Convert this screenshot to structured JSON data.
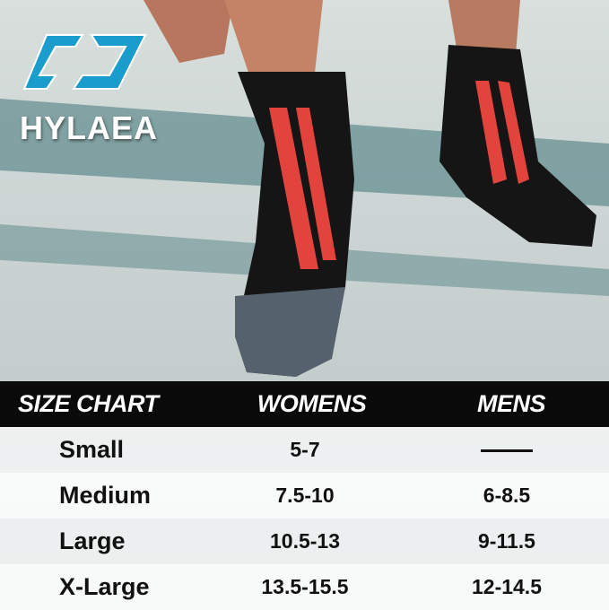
{
  "brand": {
    "name": "HYLAEA",
    "accent": "#1a9ccc"
  },
  "size_chart": {
    "headers": [
      "SIZE CHART",
      "WOMENS",
      "MENS"
    ],
    "rows": [
      {
        "size": "Small",
        "womens": "5-7",
        "mens": "—"
      },
      {
        "size": "Medium",
        "womens": "7.5-10",
        "mens": "6-8.5"
      },
      {
        "size": "Large",
        "womens": "10.5-13",
        "mens": "9-11.5"
      },
      {
        "size": "X-Large",
        "womens": "13.5-15.5",
        "mens": "12-14.5"
      }
    ]
  }
}
